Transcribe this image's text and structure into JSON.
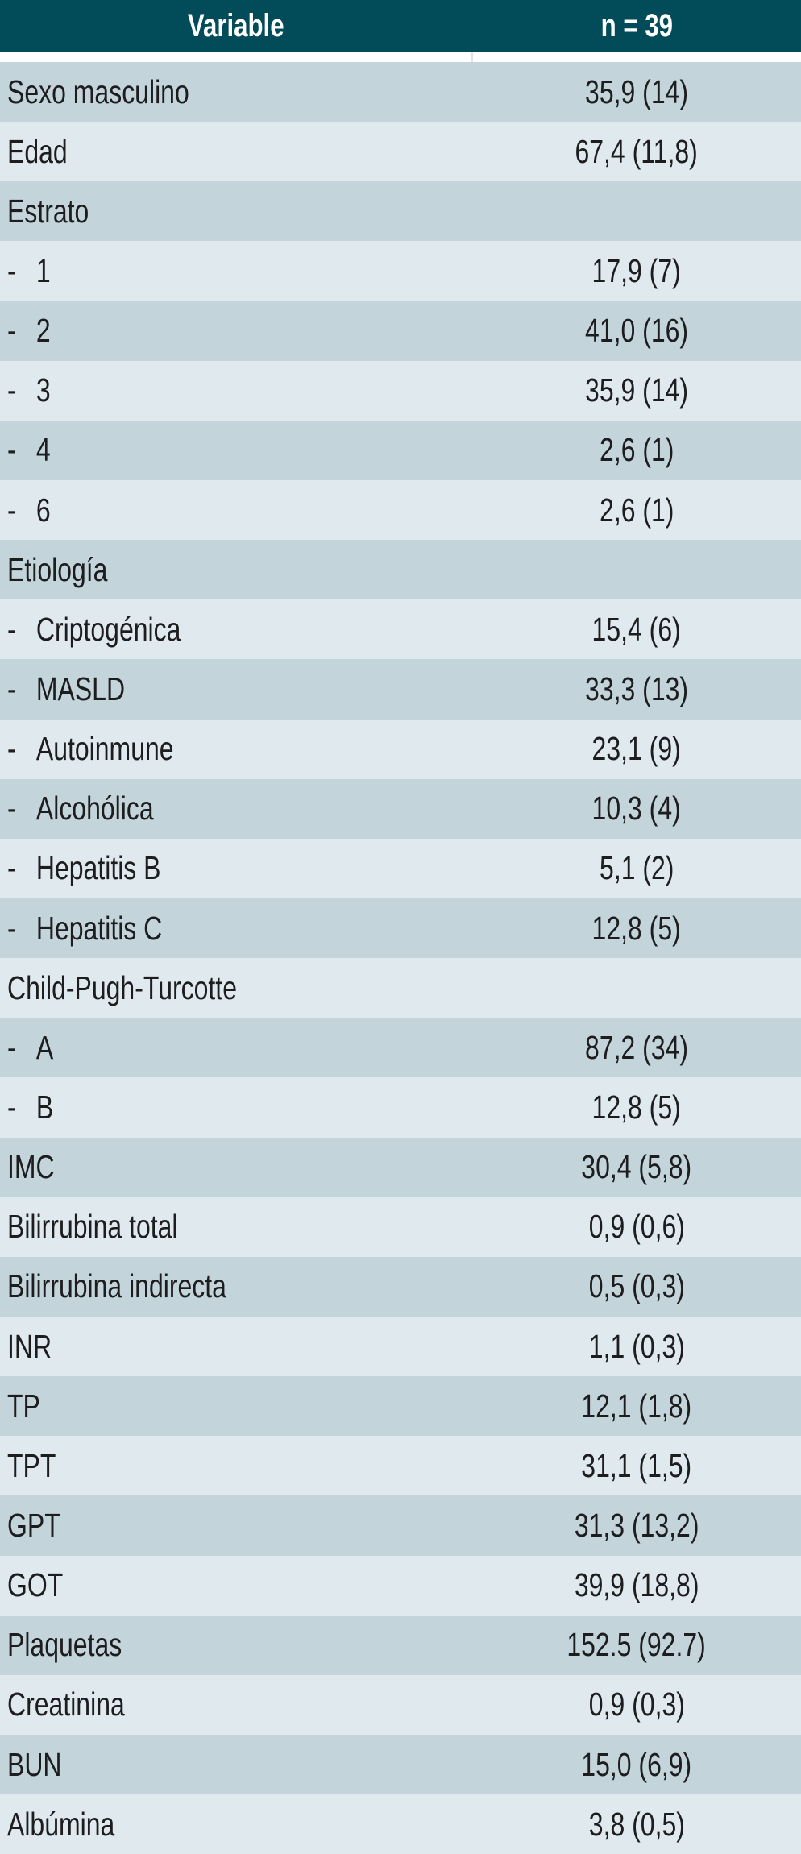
{
  "colors": {
    "header_bg": "#024c59",
    "header_text": "#ffffff",
    "row_dark": "#c3d5db",
    "row_light": "#dfe9ee",
    "body_text": "#1d1d1f"
  },
  "table": {
    "columns": {
      "variable": "Variable",
      "n": "n = 39"
    },
    "rows": [
      {
        "label": "Sexo masculino",
        "value": "35,9 (14)",
        "indent": false
      },
      {
        "label": "Edad",
        "value": "67,4 (11,8)",
        "indent": false
      },
      {
        "label": "Estrato",
        "value": "",
        "indent": false
      },
      {
        "label": "1",
        "value": "17,9 (7)",
        "indent": true
      },
      {
        "label": "2",
        "value": "41,0 (16)",
        "indent": true
      },
      {
        "label": "3",
        "value": "35,9 (14)",
        "indent": true
      },
      {
        "label": "4",
        "value": "2,6 (1)",
        "indent": true
      },
      {
        "label": "6",
        "value": "2,6 (1)",
        "indent": true
      },
      {
        "label": "Etiología",
        "value": "",
        "indent": false
      },
      {
        "label": "Criptogénica",
        "value": "15,4 (6)",
        "indent": true
      },
      {
        "label": "MASLD",
        "value": "33,3 (13)",
        "indent": true
      },
      {
        "label": "Autoinmune",
        "value": "23,1 (9)",
        "indent": true
      },
      {
        "label": "Alcohólica",
        "value": "10,3 (4)",
        "indent": true
      },
      {
        "label": "Hepatitis B",
        "value": "5,1 (2)",
        "indent": true
      },
      {
        "label": "Hepatitis C",
        "value": "12,8 (5)",
        "indent": true
      },
      {
        "label": "Child-Pugh-Turcotte",
        "value": "",
        "indent": false
      },
      {
        "label": "A",
        "value": "87,2 (34)",
        "indent": true
      },
      {
        "label": "B",
        "value": "12,8 (5)",
        "indent": true
      },
      {
        "label": "IMC",
        "value": "30,4 (5,8)",
        "indent": false
      },
      {
        "label": "Bilirrubina total",
        "value": "0,9 (0,6)",
        "indent": false
      },
      {
        "label": "Bilirrubina indirecta",
        "value": "0,5 (0,3)",
        "indent": false
      },
      {
        "label": "INR",
        "value": "1,1 (0,3)",
        "indent": false
      },
      {
        "label": "TP",
        "value": "12,1 (1,8)",
        "indent": false
      },
      {
        "label": "TPT",
        "value": "31,1 (1,5)",
        "indent": false
      },
      {
        "label": "GPT",
        "value": "31,3 (13,2)",
        "indent": false
      },
      {
        "label": "GOT",
        "value": "39,9 (18,8)",
        "indent": false
      },
      {
        "label": "Plaquetas",
        "value": "152.5 (92.7)",
        "indent": false
      },
      {
        "label": "Creatinina",
        "value": "0,9 (0,3)",
        "indent": false
      },
      {
        "label": "BUN",
        "value": "15,0 (6,9)",
        "indent": false
      },
      {
        "label": "Albúmina",
        "value": "3,8 (0,5)",
        "indent": false
      }
    ]
  }
}
